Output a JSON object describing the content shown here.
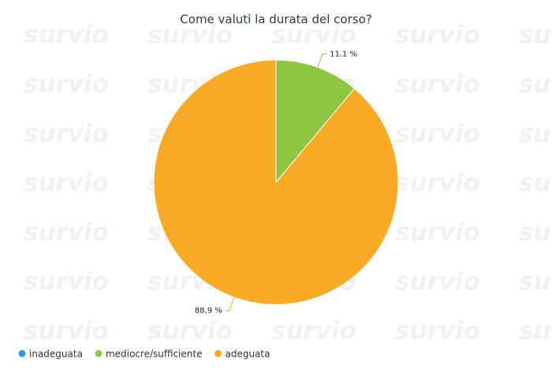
{
  "chart_data": {
    "type": "pie",
    "title": "Come valuti la durata del corso?",
    "categories": [
      "inadeguata",
      "mediocre/sufficiente",
      "adeguata"
    ],
    "values": [
      0,
      11.1,
      88.9
    ],
    "value_labels": [
      null,
      "11,1 %",
      "88,9 %"
    ],
    "colors": [
      "#2b9fd9",
      "#8dc641",
      "#f9aa24"
    ],
    "legend": "bottom-left"
  },
  "watermark": "survio"
}
